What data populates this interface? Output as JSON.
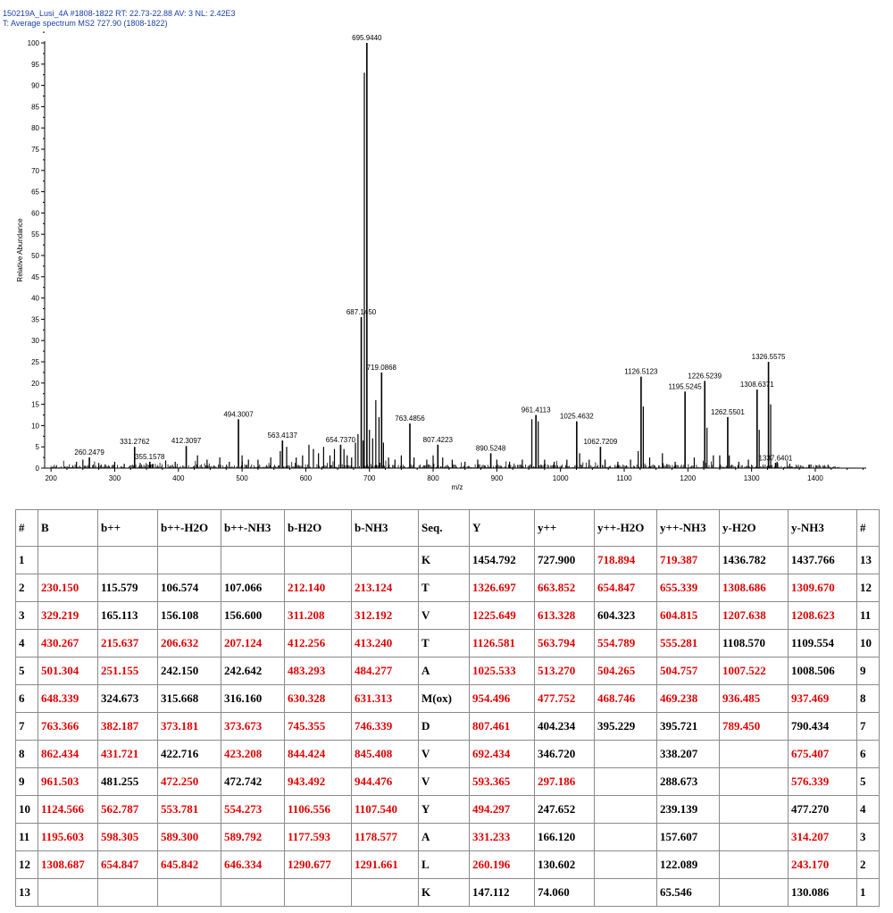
{
  "header": {
    "line1": "150219A_Lusi_4A #1808-1822   RT: 22.73-22.88   AV: 3   NL: 2.42E3",
    "line2": "T: Average spectrum MS2 727.90 (1808-1822)"
  },
  "chart_data": {
    "type": "spectrum",
    "xlabel": "m/z",
    "ylabel": "Relative Abundance",
    "xlim": [
      190,
      1480
    ],
    "ylim": [
      0,
      100
    ],
    "xticks": [
      200,
      300,
      400,
      500,
      600,
      700,
      800,
      900,
      1000,
      1100,
      1200,
      1300,
      1400
    ],
    "yticks": [
      0,
      5,
      10,
      15,
      20,
      25,
      30,
      35,
      40,
      45,
      50,
      55,
      60,
      65,
      70,
      75,
      80,
      85,
      90,
      95,
      100
    ],
    "peaks": [
      {
        "mz": 260.2479,
        "y": 2.5,
        "label": "260.2479"
      },
      {
        "mz": 331.2762,
        "y": 5.0,
        "label": "331.2762"
      },
      {
        "mz": 355.1578,
        "y": 1.5,
        "label": "355.1578"
      },
      {
        "mz": 412.3097,
        "y": 5.2,
        "label": "412.3097"
      },
      {
        "mz": 494.3007,
        "y": 11.5,
        "label": "494.3007"
      },
      {
        "mz": 563.4137,
        "y": 6.5,
        "label": "563.4137"
      },
      {
        "mz": 654.737,
        "y": 5.5,
        "label": "654.7370"
      },
      {
        "mz": 687.145,
        "y": 35.5,
        "label": "687.1450"
      },
      {
        "mz": 695.944,
        "y": 100,
        "label": "695.9440"
      },
      {
        "mz": 719.0868,
        "y": 22.5,
        "label": "719.0868"
      },
      {
        "mz": 763.4856,
        "y": 10.5,
        "label": "763.4856"
      },
      {
        "mz": 807.4223,
        "y": 5.5,
        "label": "807.4223"
      },
      {
        "mz": 890.5248,
        "y": 3.5,
        "label": "890.5248"
      },
      {
        "mz": 961.4113,
        "y": 12.5,
        "label": "961.4113"
      },
      {
        "mz": 1025.4632,
        "y": 11.0,
        "label": "1025.4632"
      },
      {
        "mz": 1062.7209,
        "y": 5.0,
        "label": "1062.7209"
      },
      {
        "mz": 1126.5123,
        "y": 21.5,
        "label": "1126.5123"
      },
      {
        "mz": 1195.5245,
        "y": 18.0,
        "label": "1195.5245"
      },
      {
        "mz": 1226.5239,
        "y": 20.5,
        "label": "1226.5239"
      },
      {
        "mz": 1262.5501,
        "y": 12.0,
        "label": "1262.5501"
      },
      {
        "mz": 1308.6371,
        "y": 18.5,
        "label": "1308.6371"
      },
      {
        "mz": 1326.5575,
        "y": 25.0,
        "label": "1326.5575"
      },
      {
        "mz": 1337.6401,
        "y": 1.2,
        "label": "1337.6401"
      }
    ],
    "minor_peaks": [
      [
        240,
        1.5
      ],
      [
        250,
        2.0
      ],
      [
        275,
        1.2
      ],
      [
        300,
        1.5
      ],
      [
        315,
        1.0
      ],
      [
        340,
        1.2
      ],
      [
        360,
        1.0
      ],
      [
        380,
        1.8
      ],
      [
        395,
        1.5
      ],
      [
        430,
        3.0
      ],
      [
        445,
        2.0
      ],
      [
        465,
        2.5
      ],
      [
        480,
        1.5
      ],
      [
        500,
        3.0
      ],
      [
        510,
        2.0
      ],
      [
        525,
        2.0
      ],
      [
        545,
        2.5
      ],
      [
        560,
        4.0
      ],
      [
        570,
        5.0
      ],
      [
        585,
        2.5
      ],
      [
        595,
        3.0
      ],
      [
        605,
        5.5
      ],
      [
        612,
        4.5
      ],
      [
        620,
        3.5
      ],
      [
        628,
        5.0
      ],
      [
        638,
        3.0
      ],
      [
        645,
        4.5
      ],
      [
        660,
        4.5
      ],
      [
        665,
        3.0
      ],
      [
        672,
        2.5
      ],
      [
        678,
        6.0
      ],
      [
        682,
        8.0
      ],
      [
        690,
        6.5
      ],
      [
        692,
        93.0
      ],
      [
        700,
        9.0
      ],
      [
        705,
        7.0
      ],
      [
        710,
        16.0
      ],
      [
        715,
        12.0
      ],
      [
        722,
        6.0
      ],
      [
        730,
        2.5
      ],
      [
        740,
        2.0
      ],
      [
        750,
        3.0
      ],
      [
        770,
        2.5
      ],
      [
        790,
        2.0
      ],
      [
        800,
        3.0
      ],
      [
        815,
        2.5
      ],
      [
        830,
        2.0
      ],
      [
        850,
        1.5
      ],
      [
        870,
        2.0
      ],
      [
        900,
        2.0
      ],
      [
        920,
        1.5
      ],
      [
        940,
        2.0
      ],
      [
        955,
        11.5
      ],
      [
        965,
        11.0
      ],
      [
        975,
        2.0
      ],
      [
        990,
        1.5
      ],
      [
        1010,
        2.0
      ],
      [
        1030,
        3.5
      ],
      [
        1045,
        2.0
      ],
      [
        1070,
        2.0
      ],
      [
        1090,
        1.5
      ],
      [
        1110,
        2.0
      ],
      [
        1122,
        4.0
      ],
      [
        1130,
        14.5
      ],
      [
        1140,
        2.5
      ],
      [
        1160,
        3.5
      ],
      [
        1180,
        1.5
      ],
      [
        1210,
        2.5
      ],
      [
        1230,
        9.5
      ],
      [
        1240,
        3.0
      ],
      [
        1250,
        3.0
      ],
      [
        1265,
        3.0
      ],
      [
        1280,
        1.5
      ],
      [
        1295,
        2.0
      ],
      [
        1312,
        9.0
      ],
      [
        1330,
        15.0
      ],
      [
        1340,
        1.5
      ],
      [
        1360,
        1.0
      ],
      [
        1390,
        0.8
      ],
      [
        1420,
        0.8
      ]
    ]
  },
  "table": {
    "headers": [
      "#",
      "B",
      "b++",
      "b++-H2O",
      "b++-NH3",
      "b-H2O",
      "b-NH3",
      "Seq.",
      "Y",
      "y++",
      "y++-H2O",
      "y++-NH3",
      "y-H2O",
      "y-NH3",
      "#"
    ],
    "colors": {
      "matched": "#e00000",
      "unmatched": "#000000"
    },
    "rows": [
      {
        "cells": [
          "1",
          "",
          "",
          "",
          "",
          "",
          "",
          "K",
          "1454.792",
          "727.900",
          "718.894",
          "719.387",
          "1436.782",
          "1437.766",
          "13"
        ],
        "red": [
          10,
          11
        ]
      },
      {
        "cells": [
          "2",
          "230.150",
          "115.579",
          "106.574",
          "107.066",
          "212.140",
          "213.124",
          "T",
          "1326.697",
          "663.852",
          "654.847",
          "655.339",
          "1308.686",
          "1309.670",
          "12"
        ],
        "red": [
          1,
          5,
          6,
          8,
          9,
          10,
          11,
          12,
          13
        ]
      },
      {
        "cells": [
          "3",
          "329.219",
          "165.113",
          "156.108",
          "156.600",
          "311.208",
          "312.192",
          "V",
          "1225.649",
          "613.328",
          "604.323",
          "604.815",
          "1207.638",
          "1208.623",
          "11"
        ],
        "red": [
          1,
          5,
          6,
          8,
          9,
          11,
          12,
          13
        ]
      },
      {
        "cells": [
          "4",
          "430.267",
          "215.637",
          "206.632",
          "207.124",
          "412.256",
          "413.240",
          "T",
          "1126.581",
          "563.794",
          "554.789",
          "555.281",
          "1108.570",
          "1109.554",
          "10"
        ],
        "red": [
          1,
          2,
          3,
          4,
          5,
          6,
          8,
          9,
          10,
          11
        ]
      },
      {
        "cells": [
          "5",
          "501.304",
          "251.155",
          "242.150",
          "242.642",
          "483.293",
          "484.277",
          "A",
          "1025.533",
          "513.270",
          "504.265",
          "504.757",
          "1007.522",
          "1008.506",
          "9"
        ],
        "red": [
          1,
          2,
          5,
          6,
          8,
          9,
          10,
          11,
          12
        ]
      },
      {
        "cells": [
          "6",
          "648.339",
          "324.673",
          "315.668",
          "316.160",
          "630.328",
          "631.313",
          "M(ox)",
          "954.496",
          "477.752",
          "468.746",
          "469.238",
          "936.485",
          "937.469",
          "8"
        ],
        "red": [
          1,
          5,
          6,
          8,
          9,
          10,
          11,
          12,
          13
        ]
      },
      {
        "cells": [
          "7",
          "763.366",
          "382.187",
          "373.181",
          "373.673",
          "745.355",
          "746.339",
          "D",
          "807.461",
          "404.234",
          "395.229",
          "395.721",
          "789.450",
          "790.434",
          "7"
        ],
        "red": [
          1,
          2,
          3,
          4,
          5,
          6,
          8,
          12
        ]
      },
      {
        "cells": [
          "8",
          "862.434",
          "431.721",
          "422.716",
          "423.208",
          "844.424",
          "845.408",
          "V",
          "692.434",
          "346.720",
          "",
          "338.207",
          "",
          "675.407",
          "6"
        ],
        "red": [
          1,
          2,
          4,
          5,
          6,
          8,
          13
        ]
      },
      {
        "cells": [
          "9",
          "961.503",
          "481.255",
          "472.250",
          "472.742",
          "943.492",
          "944.476",
          "V",
          "593.365",
          "297.186",
          "",
          "288.673",
          "",
          "576.339",
          "5"
        ],
        "red": [
          1,
          3,
          5,
          6,
          8,
          9,
          13
        ]
      },
      {
        "cells": [
          "10",
          "1124.566",
          "562.787",
          "553.781",
          "554.273",
          "1106.556",
          "1107.540",
          "Y",
          "494.297",
          "247.652",
          "",
          "239.139",
          "",
          "477.270",
          "4"
        ],
        "red": [
          1,
          2,
          3,
          4,
          5,
          6,
          8
        ]
      },
      {
        "cells": [
          "11",
          "1195.603",
          "598.305",
          "589.300",
          "589.792",
          "1177.593",
          "1178.577",
          "A",
          "331.233",
          "166.120",
          "",
          "157.607",
          "",
          "314.207",
          "3"
        ],
        "red": [
          1,
          2,
          3,
          4,
          5,
          6,
          8,
          13
        ]
      },
      {
        "cells": [
          "12",
          "1308.687",
          "654.847",
          "645.842",
          "646.334",
          "1290.677",
          "1291.661",
          "L",
          "260.196",
          "130.602",
          "",
          "122.089",
          "",
          "243.170",
          "2"
        ],
        "red": [
          1,
          2,
          3,
          4,
          5,
          6,
          8,
          13
        ]
      },
      {
        "cells": [
          "13",
          "",
          "",
          "",
          "",
          "",
          "",
          "K",
          "147.112",
          "74.060",
          "",
          "65.546",
          "",
          "130.086",
          "1"
        ],
        "red": []
      }
    ]
  }
}
